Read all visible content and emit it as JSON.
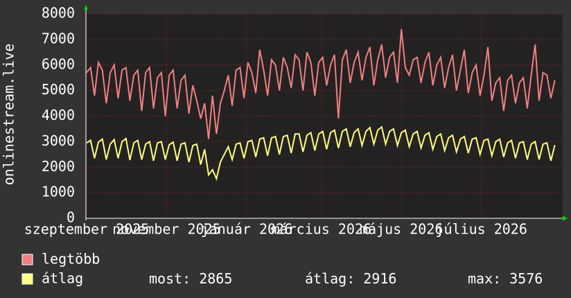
{
  "chart_data": {
    "type": "line",
    "y_label": "onlinestream.live",
    "xlim": [
      0,
      121
    ],
    "xticks": [
      {
        "value": 0,
        "label": "szeptember 2025"
      },
      {
        "value": 20.33,
        "label": "november 2025"
      },
      {
        "value": 40.67,
        "label": "január 2026"
      },
      {
        "value": 59.67,
        "label": "március 2026"
      },
      {
        "value": 80,
        "label": "május 2026"
      },
      {
        "value": 100.33,
        "label": "július 2026"
      }
    ],
    "ylim": [
      0,
      8000
    ],
    "yticks": [
      0,
      1000,
      2000,
      3000,
      4000,
      5000,
      6000,
      7000,
      8000
    ],
    "grid": true,
    "series": [
      {
        "name": "legtöbb",
        "color": "#f08080",
        "values": [
          5700,
          5900,
          4800,
          6100,
          5800,
          4500,
          5700,
          6000,
          4700,
          5800,
          5900,
          4600,
          5600,
          5800,
          4200,
          5700,
          5900,
          4300,
          5500,
          5700,
          4000,
          5600,
          5800,
          4300,
          5400,
          5600,
          4100,
          5200,
          4600,
          3900,
          4500,
          3100,
          4800,
          3300,
          4500,
          5000,
          5600,
          4400,
          5800,
          5900,
          4700,
          6100,
          5700,
          4900,
          6600,
          5800,
          4800,
          6200,
          6000,
          5000,
          6300,
          5900,
          5100,
          6400,
          6200,
          5000,
          6500,
          6100,
          4800,
          6100,
          6300,
          5200,
          6000,
          6400,
          3900,
          6200,
          6600,
          5300,
          6100,
          6500,
          5400,
          6300,
          6700,
          5200,
          6200,
          6800,
          5500,
          6300,
          6500,
          5300,
          7400,
          5900,
          5600,
          6200,
          6300,
          5300,
          6100,
          6500,
          5200,
          6000,
          6300,
          5100,
          5900,
          6400,
          5000,
          5800,
          6600,
          4900,
          5700,
          6000,
          4800,
          5600,
          6700,
          4600,
          5300,
          5500,
          4200,
          5400,
          5600,
          4500,
          5300,
          5500,
          4300,
          5600,
          6800,
          4600,
          5700,
          5600,
          4700,
          5400
        ]
      },
      {
        "name": "átlag",
        "color": "#ffff80",
        "values": [
          2950,
          3050,
          2350,
          2980,
          3100,
          2300,
          2900,
          3080,
          2350,
          3000,
          3120,
          2280,
          2950,
          3050,
          2300,
          2900,
          3000,
          2250,
          2950,
          3000,
          2300,
          2880,
          2980,
          2250,
          2900,
          2950,
          2200,
          2850,
          2900,
          2100,
          2700,
          1700,
          1900,
          1550,
          2200,
          2500,
          2800,
          2300,
          2900,
          2950,
          2350,
          3000,
          3050,
          2400,
          3100,
          3150,
          2450,
          3150,
          3200,
          2500,
          3200,
          3250,
          2550,
          3300,
          3300,
          2600,
          3250,
          3350,
          2650,
          3300,
          3400,
          2700,
          3350,
          3450,
          2750,
          3400,
          3500,
          2800,
          3350,
          3500,
          2850,
          3400,
          3550,
          2900,
          3450,
          3576,
          2900,
          3400,
          3500,
          2850,
          3350,
          3450,
          2800,
          3300,
          3400,
          2750,
          3250,
          3350,
          2700,
          3200,
          3300,
          2650,
          3150,
          3250,
          2600,
          3100,
          3200,
          2550,
          3100,
          3150,
          2500,
          3050,
          3100,
          2450,
          3000,
          3100,
          2400,
          2950,
          3050,
          2350,
          2950,
          3000,
          2300,
          2900,
          3000,
          2300,
          2900,
          2950,
          2250,
          2865
        ]
      }
    ],
    "summary": [
      {
        "label": "most:",
        "value": 2865
      },
      {
        "label": "átlag:",
        "value": 2916
      },
      {
        "label": "max:",
        "value": 3576
      }
    ]
  }
}
